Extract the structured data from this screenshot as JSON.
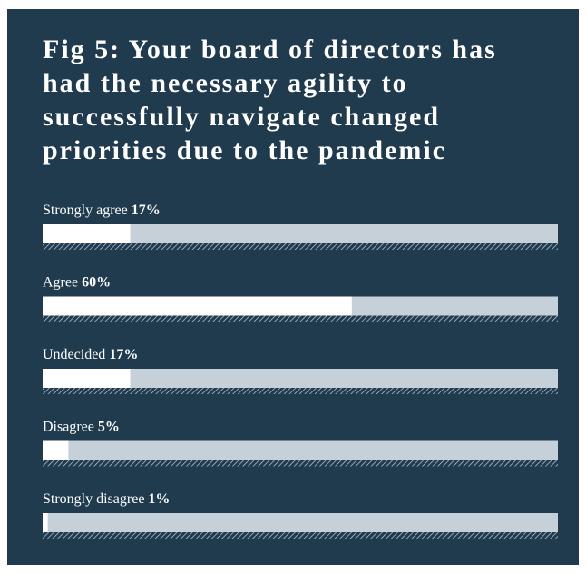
{
  "chart_data": {
    "type": "bar",
    "orientation": "horizontal",
    "title": "Fig 5: Your board of directors has had the necessary agility to successfully navigate changed priorities due to the pandemic",
    "categories": [
      "Strongly agree",
      "Agree",
      "Undecided",
      "Disagree",
      "Strongly disagree"
    ],
    "values": [
      17,
      60,
      17,
      5,
      1
    ],
    "value_labels": [
      "17%",
      "60%",
      "17%",
      "5%",
      "1%"
    ],
    "xlim": [
      0,
      100
    ],
    "color": "#ffffff",
    "track_color": "#c5d0d8",
    "background": "#203a4e"
  }
}
